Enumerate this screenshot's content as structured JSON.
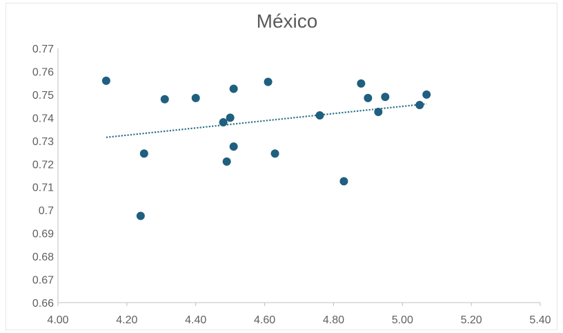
{
  "chart_data": {
    "type": "scatter",
    "title": "México",
    "xlabel": "",
    "ylabel": "",
    "xlim": [
      4.0,
      5.4
    ],
    "ylim": [
      0.66,
      0.77
    ],
    "x_ticks": [
      "4.00",
      "4.20",
      "4.40",
      "4.60",
      "4.80",
      "5.00",
      "5.20",
      "5.40"
    ],
    "y_ticks": [
      "0.77",
      "0.76",
      "0.75",
      "0.74",
      "0.73",
      "0.72",
      "0.71",
      "0.7",
      "0.69",
      "0.68",
      "0.67",
      "0.66"
    ],
    "grid": false,
    "legend": "none",
    "marker_color": "#1f5f7f",
    "trendline": {
      "type": "linear",
      "style": "dotted",
      "color": "#2b6f86",
      "x": [
        4.14,
        5.07
      ],
      "y": [
        0.7315,
        0.746
      ]
    },
    "points": [
      {
        "x": 4.14,
        "y": 0.756
      },
      {
        "x": 4.24,
        "y": 0.6975
      },
      {
        "x": 4.25,
        "y": 0.7245
      },
      {
        "x": 4.31,
        "y": 0.748
      },
      {
        "x": 4.4,
        "y": 0.7485
      },
      {
        "x": 4.48,
        "y": 0.738
      },
      {
        "x": 4.49,
        "y": 0.721
      },
      {
        "x": 4.5,
        "y": 0.74
      },
      {
        "x": 4.51,
        "y": 0.7525
      },
      {
        "x": 4.51,
        "y": 0.7275
      },
      {
        "x": 4.61,
        "y": 0.7555
      },
      {
        "x": 4.63,
        "y": 0.7245
      },
      {
        "x": 4.76,
        "y": 0.741
      },
      {
        "x": 4.83,
        "y": 0.7125
      },
      {
        "x": 4.88,
        "y": 0.7548
      },
      {
        "x": 4.9,
        "y": 0.7485
      },
      {
        "x": 4.93,
        "y": 0.7425
      },
      {
        "x": 4.95,
        "y": 0.749
      },
      {
        "x": 5.05,
        "y": 0.7455
      },
      {
        "x": 5.07,
        "y": 0.75
      }
    ]
  }
}
